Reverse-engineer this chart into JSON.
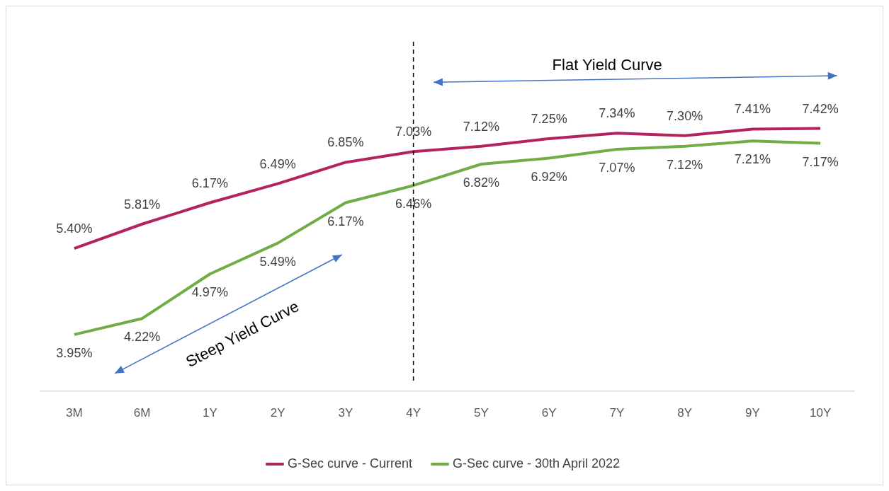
{
  "chart_data": {
    "type": "line",
    "categories": [
      "3M",
      "6M",
      "1Y",
      "2Y",
      "3Y",
      "4Y",
      "5Y",
      "6Y",
      "7Y",
      "8Y",
      "9Y",
      "10Y"
    ],
    "grid": false,
    "tick_labels": "x",
    "legend": "bottom",
    "series": [
      {
        "name": "G-Sec curve - Current",
        "color": "#b5235f",
        "values": [
          5.4,
          5.81,
          6.17,
          6.49,
          6.85,
          7.03,
          7.12,
          7.25,
          7.34,
          7.3,
          7.41,
          7.42
        ],
        "value_labels": [
          "5.40%",
          "5.81%",
          "6.17%",
          "6.49%",
          "6.85%",
          "7.03%",
          "7.12%",
          "7.25%",
          "7.34%",
          "7.30%",
          "7.41%",
          "7.42%"
        ]
      },
      {
        "name": "G-Sec curve - 30th April 2022",
        "color": "#70ad47",
        "values": [
          3.95,
          4.22,
          4.97,
          5.49,
          6.17,
          6.46,
          6.82,
          6.92,
          7.07,
          7.12,
          7.21,
          7.17
        ],
        "value_labels": [
          "3.95%",
          "4.22%",
          "4.97%",
          "5.49%",
          "6.17%",
          "6.46%",
          "6.82%",
          "6.92%",
          "7.07%",
          "7.12%",
          "7.21%",
          "7.17%"
        ]
      }
    ],
    "ref_lines": [
      {
        "axis": "x",
        "value": "4Y",
        "color": "#000000",
        "line_style": "dashed"
      }
    ],
    "annotations": [
      "Flat Yield Curve",
      "Steep Yield Curve"
    ]
  }
}
